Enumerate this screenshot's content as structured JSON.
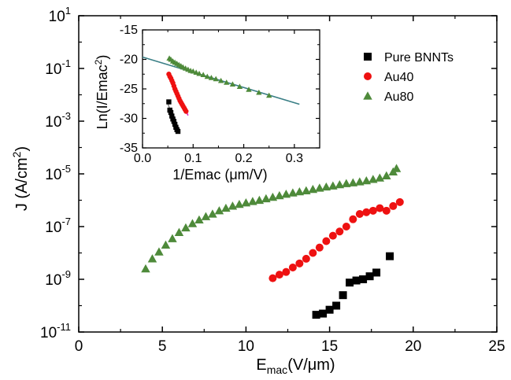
{
  "chart_data": [
    {
      "type": "scatter",
      "xlabel": "E",
      "xlabel_sub": "mac",
      "xlabel_unit": "(V/μm)",
      "ylabel": "J (A/cm",
      "ylabel_sup": "2",
      "ylabel_close": ")",
      "y_scale": "log",
      "xlim": [
        0,
        25
      ],
      "ylim_exp": [
        -11,
        1
      ],
      "x_ticks": [
        "0",
        "5",
        "10",
        "15",
        "20",
        "25"
      ],
      "y_tick_base": "10",
      "y_tick_exps": [
        "-11",
        "-9",
        "-7",
        "-5",
        "-3",
        "-1",
        "1"
      ],
      "legend_position": "top-right",
      "series": [
        {
          "name": "Pure BNNTs",
          "color": "#000000",
          "marker": "square",
          "points": [
            [
              14.2,
              4.5e-11
            ],
            [
              14.6,
              5e-11
            ],
            [
              15.0,
              7e-11
            ],
            [
              15.4,
              1e-10
            ],
            [
              15.8,
              2.5e-10
            ],
            [
              16.2,
              7.5e-10
            ],
            [
              16.6,
              9e-10
            ],
            [
              17.0,
              1e-09
            ],
            [
              17.4,
              1.3e-09
            ],
            [
              17.8,
              1.8e-09
            ],
            [
              18.6,
              7.5e-09
            ]
          ]
        },
        {
          "name": "Au40",
          "color": "#ee1111",
          "marker": "circle",
          "points": [
            [
              11.6,
              1.1e-09
            ],
            [
              12.0,
              1.5e-09
            ],
            [
              12.4,
              1.9e-09
            ],
            [
              12.8,
              2.8e-09
            ],
            [
              13.2,
              4e-09
            ],
            [
              13.6,
              6e-09
            ],
            [
              14.0,
              1e-08
            ],
            [
              14.4,
              1.6e-08
            ],
            [
              14.8,
              2.8e-08
            ],
            [
              15.2,
              4.5e-08
            ],
            [
              15.6,
              6.5e-08
            ],
            [
              16.0,
              1e-07
            ],
            [
              16.4,
              1.9e-07
            ],
            [
              16.8,
              3e-07
            ],
            [
              17.2,
              3.5e-07
            ],
            [
              17.6,
              4e-07
            ],
            [
              18.0,
              5e-07
            ],
            [
              18.4,
              4e-07
            ],
            [
              18.8,
              6e-07
            ],
            [
              19.2,
              8.5e-07
            ]
          ]
        },
        {
          "name": "Au80",
          "color": "#4e8a3a",
          "marker": "triangle",
          "points": [
            [
              4.0,
              2.5e-09
            ],
            [
              4.4,
              6e-09
            ],
            [
              4.8,
              1.1e-08
            ],
            [
              5.2,
              2e-08
            ],
            [
              5.6,
              3.5e-08
            ],
            [
              6.0,
              6e-08
            ],
            [
              6.4,
              9e-08
            ],
            [
              6.8,
              1.3e-07
            ],
            [
              7.2,
              1.8e-07
            ],
            [
              7.6,
              2.4e-07
            ],
            [
              8.0,
              3e-07
            ],
            [
              8.4,
              4e-07
            ],
            [
              8.8,
              5e-07
            ],
            [
              9.2,
              6e-07
            ],
            [
              9.6,
              7e-07
            ],
            [
              10.0,
              8e-07
            ],
            [
              10.4,
              9e-07
            ],
            [
              10.8,
              1e-06
            ],
            [
              11.2,
              1.15e-06
            ],
            [
              11.6,
              1.3e-06
            ],
            [
              12.0,
              1.5e-06
            ],
            [
              12.4,
              1.7e-06
            ],
            [
              12.8,
              1.9e-06
            ],
            [
              13.2,
              2.1e-06
            ],
            [
              13.6,
              2.3e-06
            ],
            [
              14.0,
              2.6e-06
            ],
            [
              14.4,
              2.9e-06
            ],
            [
              14.8,
              3.2e-06
            ],
            [
              15.2,
              3.5e-06
            ],
            [
              15.6,
              3.9e-06
            ],
            [
              16.0,
              4.3e-06
            ],
            [
              16.4,
              4.6e-06
            ],
            [
              16.8,
              5e-06
            ],
            [
              17.2,
              5.5e-06
            ],
            [
              17.6,
              6.2e-06
            ],
            [
              18.0,
              7e-06
            ],
            [
              18.4,
              8.5e-06
            ],
            [
              18.8,
              1.2e-05
            ],
            [
              19.0,
              1.6e-05
            ]
          ]
        }
      ]
    },
    {
      "type": "scatter",
      "inset": true,
      "xlabel": "1/Emac (μm/V)",
      "ylabel": "Ln(I/Emac",
      "ylabel_sup": "2",
      "ylabel_close": ")",
      "xlim": [
        0.0,
        0.35
      ],
      "ylim": [
        -35,
        -15
      ],
      "x_ticks": [
        "0.0",
        "0.1",
        "0.2",
        "0.3"
      ],
      "y_ticks": [
        "-35",
        "-30",
        "-25",
        "-20",
        "-15"
      ],
      "series": [
        {
          "name": "Pure BNNTs",
          "color": "#000000",
          "marker": "square",
          "points": [
            [
              0.052,
              -27.2
            ],
            [
              0.054,
              -28.6
            ],
            [
              0.056,
              -29.0
            ],
            [
              0.058,
              -29.6
            ],
            [
              0.06,
              -30.1
            ],
            [
              0.062,
              -30.5
            ],
            [
              0.064,
              -31.0
            ],
            [
              0.066,
              -31.5
            ],
            [
              0.068,
              -31.9
            ],
            [
              0.07,
              -32.2
            ]
          ],
          "fit": {
            "color": "#888888",
            "x": [
              0.05,
              0.072
            ],
            "y": [
              -27.5,
              -32.5
            ]
          }
        },
        {
          "name": "Au40",
          "color": "#ee1111",
          "marker": "circle",
          "points": [
            [
              0.052,
              -22.5
            ],
            [
              0.054,
              -22.9
            ],
            [
              0.056,
              -23.2
            ],
            [
              0.058,
              -23.6
            ],
            [
              0.06,
              -24.0
            ],
            [
              0.062,
              -24.5
            ],
            [
              0.064,
              -25.0
            ],
            [
              0.066,
              -25.4
            ],
            [
              0.068,
              -25.8
            ],
            [
              0.07,
              -26.2
            ],
            [
              0.072,
              -26.6
            ],
            [
              0.074,
              -27.0
            ],
            [
              0.076,
              -27.3
            ],
            [
              0.078,
              -27.6
            ],
            [
              0.08,
              -27.9
            ],
            [
              0.082,
              -28.2
            ],
            [
              0.084,
              -28.5
            ],
            [
              0.086,
              -28.8
            ]
          ],
          "fit": {
            "color": "#e020c0",
            "x": [
              0.05,
              0.09
            ],
            "y": [
              -22.3,
              -29.5
            ]
          }
        },
        {
          "name": "Au80",
          "color": "#4e8a3a",
          "marker": "triangle",
          "points": [
            [
              0.053,
              -19.8
            ],
            [
              0.056,
              -20.0
            ],
            [
              0.06,
              -20.3
            ],
            [
              0.064,
              -20.5
            ],
            [
              0.068,
              -20.7
            ],
            [
              0.072,
              -20.9
            ],
            [
              0.076,
              -21.1
            ],
            [
              0.08,
              -21.3
            ],
            [
              0.085,
              -21.5
            ],
            [
              0.09,
              -21.7
            ],
            [
              0.095,
              -21.9
            ],
            [
              0.1,
              -22.0
            ],
            [
              0.106,
              -22.2
            ],
            [
              0.112,
              -22.4
            ],
            [
              0.12,
              -22.6
            ],
            [
              0.128,
              -22.9
            ],
            [
              0.136,
              -23.1
            ],
            [
              0.145,
              -23.3
            ],
            [
              0.155,
              -23.6
            ],
            [
              0.166,
              -23.9
            ],
            [
              0.178,
              -24.2
            ],
            [
              0.192,
              -24.6
            ],
            [
              0.21,
              -25.1
            ],
            [
              0.23,
              -25.6
            ],
            [
              0.25,
              -26.1
            ]
          ],
          "fit": {
            "color": "#3a7f86",
            "x": [
              0.0,
              0.31
            ],
            "y": [
              -19.6,
              -27.6
            ]
          }
        }
      ]
    }
  ]
}
